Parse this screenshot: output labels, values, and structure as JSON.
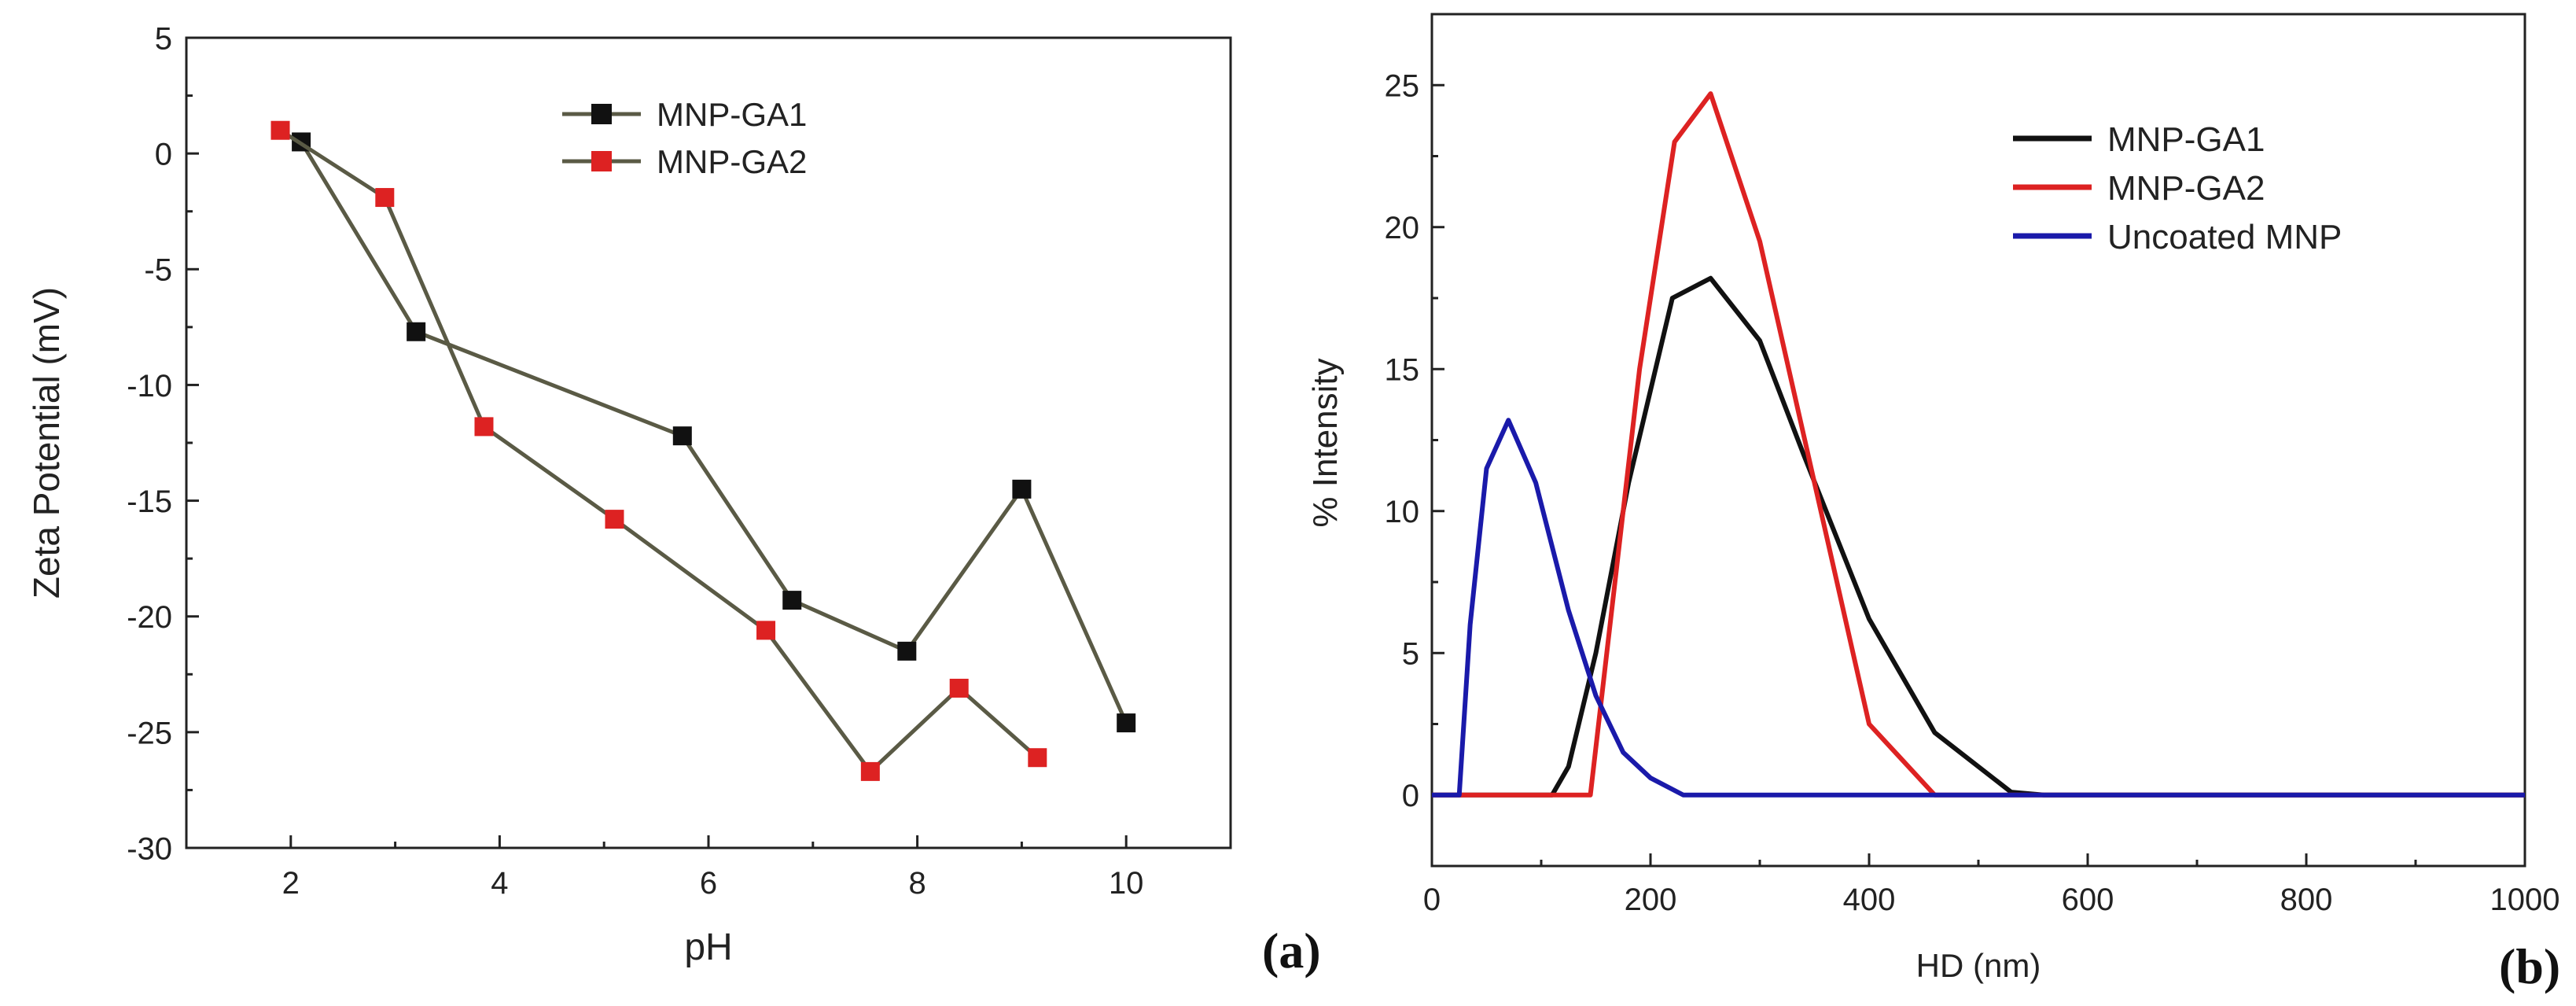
{
  "chart_data": [
    {
      "type": "line",
      "panel_label": "(a)",
      "title": "",
      "xlabel": "pH",
      "ylabel": "Zeta Potential (mV)",
      "xlim": [
        1,
        11
      ],
      "ylim": [
        -30,
        5
      ],
      "xticks": [
        2,
        4,
        6,
        8,
        10
      ],
      "yticks": [
        5,
        0,
        -5,
        -10,
        -15,
        -20,
        -25,
        -30
      ],
      "grid": false,
      "legend_position": "top-center",
      "series": [
        {
          "name": "MNP-GA1",
          "line_color": "#5a5a45",
          "marker_color": "#111111",
          "marker": "square",
          "x": [
            2.1,
            3.2,
            5.75,
            6.8,
            7.9,
            9.0,
            10.0
          ],
          "y": [
            0.5,
            -7.7,
            -12.2,
            -19.3,
            -21.5,
            -14.5,
            -24.6
          ]
        },
        {
          "name": "MNP-GA2",
          "line_color": "#5a5a45",
          "marker_color": "#dd2222",
          "marker": "square",
          "x": [
            1.9,
            2.9,
            3.85,
            5.1,
            6.55,
            7.55,
            8.4,
            9.15
          ],
          "y": [
            1.0,
            -1.9,
            -11.8,
            -15.8,
            -20.6,
            -26.7,
            -23.1,
            -26.1
          ]
        }
      ]
    },
    {
      "type": "line",
      "panel_label": "(b)",
      "title": "",
      "xlabel": "HD (nm)",
      "ylabel": "% Intensity",
      "xlim": [
        0,
        1000
      ],
      "ylim": [
        -2.5,
        27.5
      ],
      "xticks": [
        0,
        200,
        400,
        600,
        800,
        1000
      ],
      "yticks": [
        0,
        5,
        10,
        15,
        20,
        25
      ],
      "grid": false,
      "legend_position": "top-right",
      "series": [
        {
          "name": "MNP-GA1",
          "color": "#111111",
          "x": [
            0,
            110,
            125,
            150,
            180,
            220,
            255,
            300,
            340,
            400,
            460,
            530,
            560,
            1000
          ],
          "y": [
            0,
            0,
            1,
            5,
            11,
            17.5,
            18.2,
            16,
            12,
            6.2,
            2.2,
            0.1,
            0,
            0
          ]
        },
        {
          "name": "MNP-GA2",
          "color": "#dd2222",
          "x": [
            0,
            145,
            160,
            190,
            222,
            255,
            300,
            350,
            400,
            460,
            1000
          ],
          "y": [
            0,
            0,
            5,
            15,
            23,
            24.7,
            19.5,
            11,
            2.5,
            0,
            0
          ]
        },
        {
          "name": "Uncoated MNP",
          "color": "#1a1aaa",
          "x": [
            0,
            25,
            35,
            50,
            70,
            95,
            125,
            150,
            175,
            200,
            230,
            1000
          ],
          "y": [
            0,
            0,
            6,
            11.5,
            13.2,
            11,
            6.5,
            3.5,
            1.5,
            0.6,
            0,
            0
          ]
        }
      ]
    }
  ]
}
